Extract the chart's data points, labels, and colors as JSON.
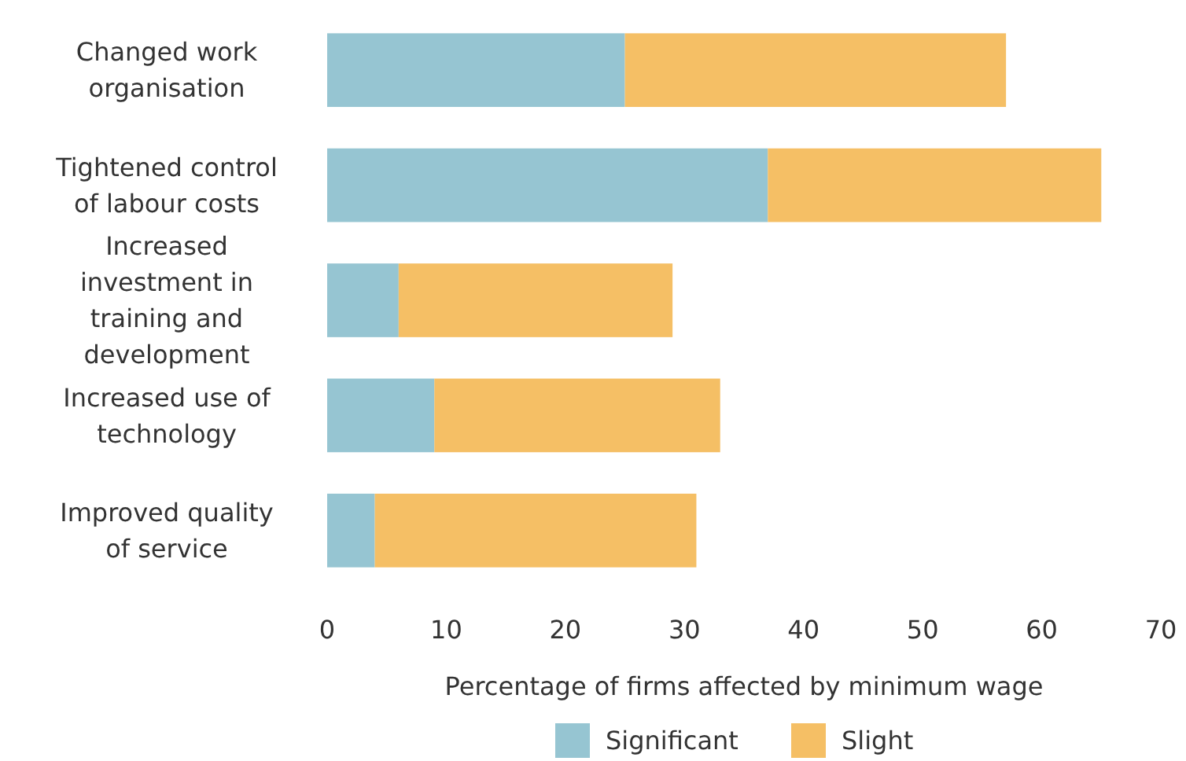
{
  "chart_data": {
    "type": "bar",
    "orientation": "horizontal",
    "stacked": true,
    "xlabel": "Percentage of firms affected by minimum wage",
    "categories": [
      "Changed work organisation",
      "Tightened control of labour costs",
      "Increased investment in training and development",
      "Increased use of technology",
      "Improved quality of service"
    ],
    "series": [
      {
        "name": "Significant",
        "color": "#96c5d2",
        "values": [
          25,
          37,
          6,
          9,
          4
        ]
      },
      {
        "name": "Slight",
        "color": "#f5bf65",
        "values": [
          32,
          28,
          23,
          24,
          27
        ]
      }
    ],
    "xlim": [
      0,
      70
    ],
    "xticks": [
      0,
      10,
      20,
      30,
      40,
      50,
      60,
      70
    ],
    "grid": false,
    "legend": "bottom"
  }
}
